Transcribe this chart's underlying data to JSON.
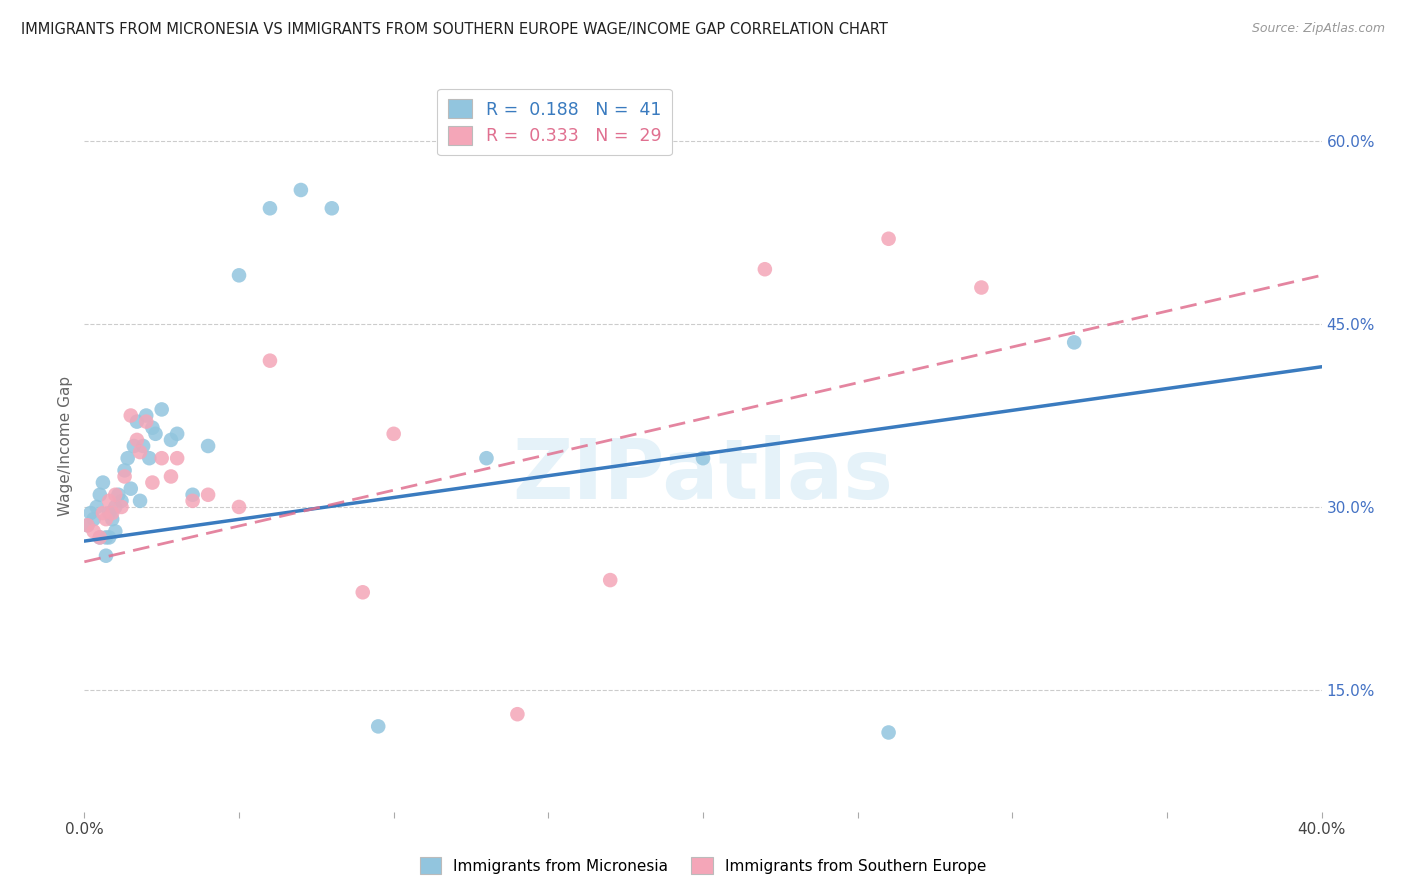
{
  "title": "IMMIGRANTS FROM MICRONESIA VS IMMIGRANTS FROM SOUTHERN EUROPE WAGE/INCOME GAP CORRELATION CHART",
  "source": "Source: ZipAtlas.com",
  "ylabel": "Wage/Income Gap",
  "xlim": [
    0.0,
    0.4
  ],
  "ylim": [
    0.05,
    0.65
  ],
  "ytick_positions": [
    0.15,
    0.3,
    0.45,
    0.6
  ],
  "ytick_labels": [
    "15.0%",
    "30.0%",
    "45.0%",
    "60.0%"
  ],
  "legend_r1": "0.188",
  "legend_n1": "41",
  "legend_r2": "0.333",
  "legend_n2": "29",
  "color_blue": "#92c5de",
  "color_pink": "#f4a6b8",
  "line_color_blue": "#3a7bbf",
  "line_color_pink": "#e07090",
  "watermark": "ZIPatlas",
  "micro_x": [
    0.001,
    0.002,
    0.003,
    0.004,
    0.005,
    0.005,
    0.006,
    0.007,
    0.007,
    0.008,
    0.008,
    0.009,
    0.01,
    0.01,
    0.011,
    0.012,
    0.013,
    0.014,
    0.015,
    0.016,
    0.017,
    0.018,
    0.019,
    0.02,
    0.021,
    0.022,
    0.023,
    0.025,
    0.028,
    0.03,
    0.035,
    0.04,
    0.05,
    0.06,
    0.07,
    0.08,
    0.095,
    0.13,
    0.2,
    0.26,
    0.32
  ],
  "micro_y": [
    0.285,
    0.295,
    0.29,
    0.3,
    0.31,
    0.275,
    0.32,
    0.275,
    0.26,
    0.295,
    0.275,
    0.29,
    0.28,
    0.3,
    0.31,
    0.305,
    0.33,
    0.34,
    0.315,
    0.35,
    0.37,
    0.305,
    0.35,
    0.375,
    0.34,
    0.365,
    0.36,
    0.38,
    0.355,
    0.36,
    0.31,
    0.35,
    0.49,
    0.545,
    0.56,
    0.545,
    0.12,
    0.34,
    0.34,
    0.115,
    0.435
  ],
  "se_x": [
    0.001,
    0.003,
    0.005,
    0.006,
    0.007,
    0.008,
    0.009,
    0.01,
    0.012,
    0.013,
    0.015,
    0.017,
    0.018,
    0.02,
    0.022,
    0.025,
    0.028,
    0.03,
    0.035,
    0.04,
    0.05,
    0.06,
    0.09,
    0.1,
    0.14,
    0.17,
    0.22,
    0.26,
    0.29
  ],
  "se_y": [
    0.285,
    0.28,
    0.275,
    0.295,
    0.29,
    0.305,
    0.295,
    0.31,
    0.3,
    0.325,
    0.375,
    0.355,
    0.345,
    0.37,
    0.32,
    0.34,
    0.325,
    0.34,
    0.305,
    0.31,
    0.3,
    0.42,
    0.23,
    0.36,
    0.13,
    0.24,
    0.495,
    0.52,
    0.48
  ],
  "line_blue_x0": 0.0,
  "line_blue_y0": 0.272,
  "line_blue_x1": 0.4,
  "line_blue_y1": 0.415,
  "line_pink_x0": 0.0,
  "line_pink_y0": 0.255,
  "line_pink_x1": 0.4,
  "line_pink_y1": 0.49
}
